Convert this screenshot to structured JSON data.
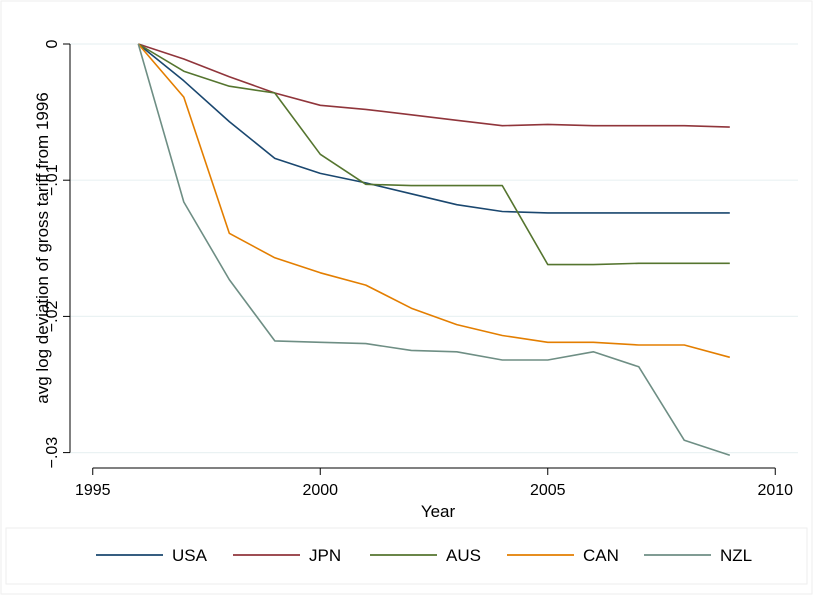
{
  "chart_data": {
    "type": "line",
    "xlabel": "Year",
    "ylabel": "avg log deviation of gross tariff from 1996",
    "xlim": [
      1994.5,
      2010.5
    ],
    "ylim": [
      -0.0305,
      0.0
    ],
    "xticks": [
      1995,
      2000,
      2005,
      2010
    ],
    "xtick_labels": [
      "1995",
      "2000",
      "2005",
      "2010"
    ],
    "yticks": [
      0,
      -0.01,
      -0.02,
      -0.03
    ],
    "ytick_labels": [
      "0",
      "−.01",
      "−.02",
      "−.03"
    ],
    "grid": true,
    "legend_position": "bottom",
    "x": [
      1996,
      1997,
      1998,
      1999,
      2000,
      2001,
      2002,
      2003,
      2004,
      2005,
      2006,
      2007,
      2008,
      2009
    ],
    "series": [
      {
        "name": "USA",
        "color": "#1a476f",
        "values": [
          0,
          -0.0027,
          -0.0057,
          -0.0084,
          -0.0095,
          -0.0102,
          -0.011,
          -0.0118,
          -0.0123,
          -0.0124,
          -0.0124,
          -0.0124,
          -0.0124,
          -0.0124
        ]
      },
      {
        "name": "JPN",
        "color": "#90353b",
        "values": [
          0,
          -0.0011,
          -0.0024,
          -0.0036,
          -0.0045,
          -0.0048,
          -0.0052,
          -0.0056,
          -0.006,
          -0.0059,
          -0.006,
          -0.006,
          -0.006,
          -0.0061
        ]
      },
      {
        "name": "AUS",
        "color": "#55752f",
        "values": [
          0,
          -0.002,
          -0.0031,
          -0.0036,
          -0.0081,
          -0.0103,
          -0.0104,
          -0.0104,
          -0.0104,
          -0.0162,
          -0.0162,
          -0.0161,
          -0.0161,
          -0.0161
        ]
      },
      {
        "name": "CAN",
        "color": "#e37e00",
        "values": [
          0,
          -0.0039,
          -0.0139,
          -0.0157,
          -0.0168,
          -0.0177,
          -0.0194,
          -0.0206,
          -0.0214,
          -0.0219,
          -0.0219,
          -0.0221,
          -0.0221,
          -0.023
        ]
      },
      {
        "name": "NZL",
        "color": "#6e8e84",
        "values": [
          0,
          -0.0116,
          -0.0173,
          -0.0218,
          -0.0219,
          -0.022,
          -0.0225,
          -0.0226,
          -0.0232,
          -0.0232,
          -0.0226,
          -0.0237,
          -0.0291,
          -0.0302
        ]
      }
    ]
  }
}
